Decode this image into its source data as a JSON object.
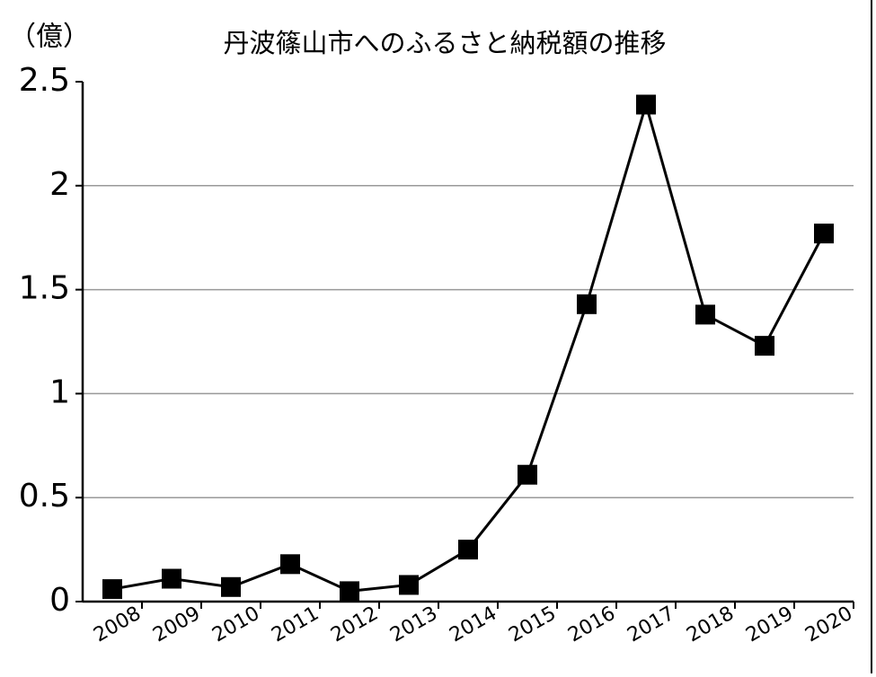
{
  "chart_data": {
    "type": "line",
    "title": "丹波篠山市へのふるさと納税額の推移",
    "y_label": "（億）",
    "categories": [
      "2008",
      "2009",
      "2010",
      "2011",
      "2012",
      "2013",
      "2014",
      "2015",
      "2016",
      "2017",
      "2018",
      "2019",
      "2020"
    ],
    "values": [
      0.06,
      0.11,
      0.07,
      0.18,
      0.05,
      0.08,
      0.25,
      0.61,
      1.43,
      2.39,
      1.38,
      1.23,
      1.77
    ],
    "color": "#000000",
    "ylim": [
      0,
      2.5
    ],
    "yticks": [
      0,
      {
        "value": 0.5,
        "label": "0.5"
      },
      1,
      {
        "value": 1.5,
        "label": "1.5"
      },
      2,
      {
        "value": 2.5,
        "label": "2.5"
      }
    ],
    "grid": true
  }
}
